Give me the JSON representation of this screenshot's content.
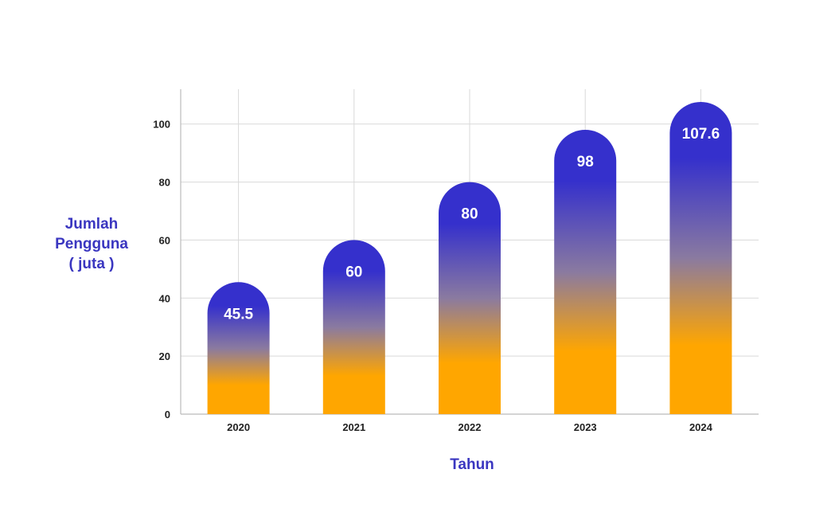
{
  "chart_data": {
    "type": "bar",
    "categories": [
      "2020",
      "2021",
      "2022",
      "2023",
      "2024"
    ],
    "values": [
      45.5,
      60,
      80,
      98,
      107.6
    ],
    "value_labels": [
      "45.5",
      "60",
      "80",
      "98",
      "107.6"
    ],
    "title": "",
    "xlabel": "Tahun",
    "ylabel_lines": [
      "Jumlah",
      "Pengguna",
      "( juta )"
    ],
    "ylim": [
      0,
      112
    ],
    "y_ticks": [
      0,
      20,
      40,
      60,
      80,
      100
    ],
    "grid": true,
    "colors": {
      "bar_top": "#3530cc",
      "bar_mid": "#8a7aa0",
      "bar_bottom": "#ffa600",
      "axis_title": "#3a36c0",
      "grid": "#d9d9d9",
      "axis": "#bbbbbb",
      "tick_text": "#222222",
      "value_text": "#ffffff"
    }
  }
}
